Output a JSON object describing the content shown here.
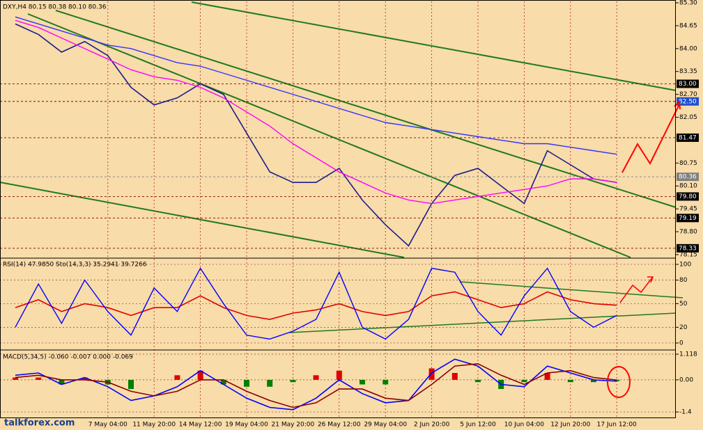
{
  "chart_data": [
    {
      "type": "line",
      "title": "DXY,H4  80.15 80.38 80.10 80.36",
      "categories": [
        null,
        null,
        null,
        null,
        "7 May 04:00",
        null,
        "11 May 20:00",
        null,
        "14 May 12:00",
        null,
        "19 May 04:00",
        null,
        "21 May 20:00",
        null,
        "26 May 12:00",
        null,
        "29 May 04:00",
        null,
        "2 Jun 20:00",
        null,
        "5 Jun 12:00",
        null,
        "10 Jun 04:00",
        null,
        "12 Jun 20:00",
        null,
        "17 Jun 12:00"
      ],
      "series": [
        {
          "color": "#1c1c8c",
          "values": [
            84.7,
            84.4,
            83.9,
            84.2,
            83.8,
            82.9,
            82.4,
            82.6,
            83.0,
            82.7,
            81.6,
            80.5,
            80.2,
            80.2,
            80.6,
            79.7,
            79.0,
            78.4,
            79.6,
            80.4,
            80.6,
            80.1,
            79.6,
            81.1,
            80.7,
            80.3,
            80.2
          ]
        },
        {
          "color": "#ff00ff",
          "values": [
            84.8,
            84.6,
            84.3,
            84.0,
            83.7,
            83.4,
            83.2,
            83.1,
            82.9,
            82.6,
            82.2,
            81.8,
            81.3,
            80.9,
            80.5,
            80.2,
            79.9,
            79.7,
            79.6,
            79.7,
            79.8,
            79.9,
            80.0,
            80.1,
            80.3,
            80.3,
            80.2
          ]
        },
        {
          "color": "#3333ff",
          "values": [
            84.9,
            84.7,
            84.5,
            84.3,
            84.1,
            84.0,
            83.8,
            83.6,
            83.5,
            83.3,
            83.1,
            82.9,
            82.7,
            82.5,
            82.3,
            82.1,
            81.9,
            81.8,
            81.7,
            81.6,
            81.5,
            81.4,
            81.3,
            81.3,
            81.2,
            81.1,
            81.0
          ]
        }
      ],
      "ylim": [
        78.07,
        85.34
      ],
      "yticks": [
        {
          "value": 85.3,
          "label": "85.30"
        },
        {
          "value": 84.65,
          "label": "84.65"
        },
        {
          "value": 84,
          "label": "84.00"
        },
        {
          "value": 83.35,
          "label": "83.35"
        },
        {
          "value": 82.7,
          "label": "82.70"
        },
        {
          "value": 82.05,
          "label": "82.05"
        },
        {
          "value": 80.75,
          "label": "80.75"
        },
        {
          "value": 80.1,
          "label": "80.10"
        },
        {
          "value": 79.45,
          "label": "79.45"
        },
        {
          "value": 78.8,
          "label": "78.80"
        },
        {
          "value": 78.15,
          "label": "78.15"
        }
      ],
      "levels": [
        {
          "value": 83,
          "label": "83.00",
          "color": "#000000"
        },
        {
          "value": 82.5,
          "label": "82.50",
          "color": "#1f4fd0"
        },
        {
          "value": 81.47,
          "label": "81.47",
          "color": "#000000"
        },
        {
          "value": 80.36,
          "label": "80.36",
          "color": "#808080"
        },
        {
          "value": 79.8,
          "label": "79.80",
          "color": "#000000"
        },
        {
          "value": 79.19,
          "label": "79.19",
          "color": "#000000"
        },
        {
          "value": 78.33,
          "label": "78.33",
          "color": "#000000"
        }
      ]
    },
    {
      "type": "line",
      "title": "RSI(14) 47.9850  Sto(14,3,3) 35.2941 39.7266",
      "series": [
        {
          "color": "#e00000",
          "values": [
            45,
            55,
            40,
            50,
            45,
            35,
            45,
            45,
            60,
            45,
            35,
            30,
            38,
            42,
            50,
            40,
            35,
            40,
            60,
            65,
            55,
            45,
            50,
            65,
            55,
            50,
            48
          ]
        },
        {
          "color": "#0000ff",
          "values": [
            20,
            75,
            25,
            80,
            40,
            10,
            70,
            40,
            95,
            50,
            10,
            5,
            15,
            30,
            90,
            20,
            5,
            30,
            95,
            90,
            40,
            10,
            60,
            95,
            40,
            20,
            35
          ]
        }
      ],
      "ylim": [
        -8,
        107
      ],
      "yticks": [
        100,
        80,
        50,
        20,
        0
      ]
    },
    {
      "type": "macd",
      "title": "MACD(5,34,5) -0.060 -0.007 0.000 -0.069",
      "histogram": {
        "pos_color": "#e00000",
        "neg_color": "#008000",
        "values": [
          0.1,
          0.1,
          -0.2,
          0.1,
          -0.2,
          -0.4,
          0.0,
          0.2,
          0.4,
          -0.2,
          -0.3,
          -0.3,
          -0.1,
          0.2,
          0.4,
          -0.2,
          -0.2,
          0.0,
          0.5,
          0.3,
          -0.1,
          -0.4,
          -0.1,
          0.3,
          -0.1,
          -0.1,
          -0.06
        ]
      },
      "series": [
        {
          "color": "#0000ff",
          "values": [
            0.2,
            0.3,
            -0.2,
            0.1,
            -0.3,
            -0.9,
            -0.7,
            -0.3,
            0.4,
            -0.2,
            -0.8,
            -1.2,
            -1.3,
            -0.8,
            0.0,
            -0.6,
            -1.0,
            -0.9,
            0.3,
            0.9,
            0.6,
            -0.2,
            -0.3,
            0.6,
            0.3,
            0.0,
            -0.06
          ]
        },
        {
          "color": "#8b0000",
          "values": [
            0.1,
            0.2,
            0.0,
            0.0,
            -0.1,
            -0.5,
            -0.7,
            -0.5,
            0.0,
            0.0,
            -0.5,
            -0.9,
            -1.2,
            -1.0,
            -0.4,
            -0.4,
            -0.8,
            -0.9,
            -0.2,
            0.6,
            0.7,
            0.2,
            -0.2,
            0.3,
            0.4,
            0.1,
            -0.007
          ]
        }
      ],
      "ylim": [
        -1.64,
        1.24
      ],
      "yticks": [
        {
          "value": 1.118,
          "label": "1.118"
        },
        {
          "value": 0,
          "label": "0.00"
        },
        -1.4
      ]
    }
  ],
  "watermark": "talkforex.com"
}
